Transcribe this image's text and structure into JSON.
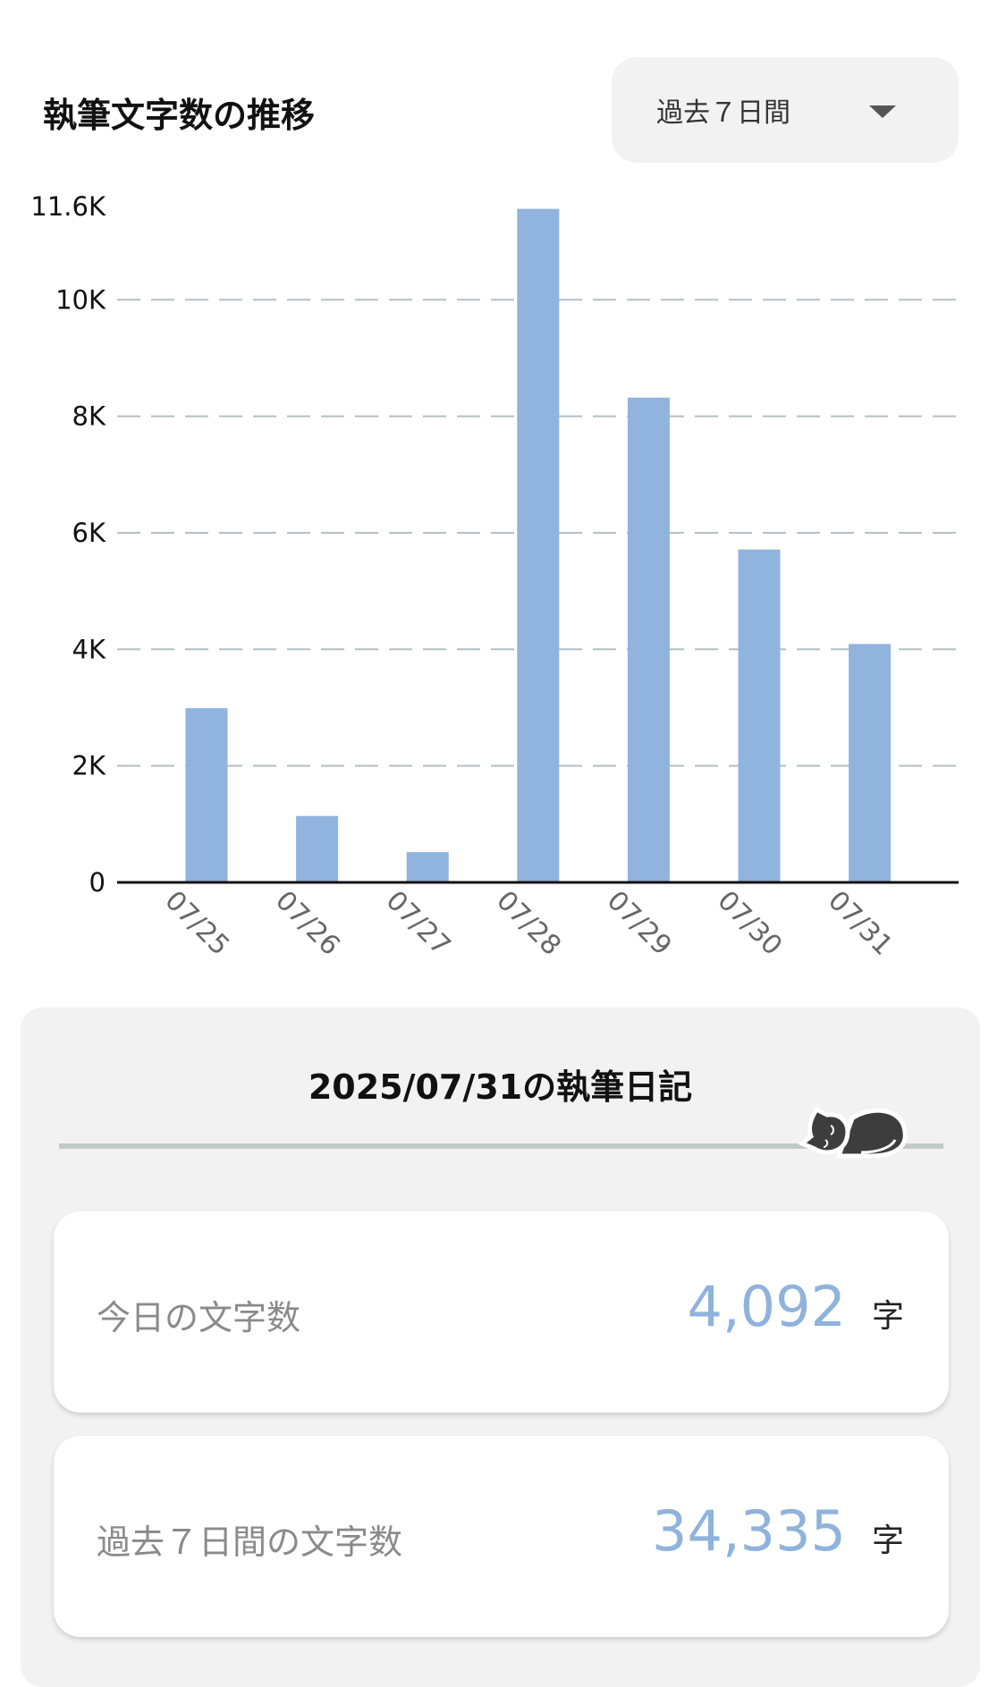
{
  "header": {
    "title": "執筆文字数の推移",
    "period_select": {
      "selected": "過去７日間",
      "icon": "caret-down-icon"
    }
  },
  "chart_data": {
    "type": "bar",
    "categories": [
      "07/25",
      "07/26",
      "07/27",
      "07/28",
      "07/29",
      "07/30",
      "07/31"
    ],
    "values": [
      2990,
      1140,
      520,
      11560,
      8320,
      5713,
      4092
    ],
    "yticks": [
      "0",
      "2K",
      "4K",
      "6K",
      "8K",
      "10K",
      "11.6K"
    ],
    "ytick_values": [
      0,
      2000,
      4000,
      6000,
      8000,
      10000,
      11600
    ],
    "ylim": [
      0,
      11600
    ],
    "grid": "dashed horizontal",
    "bar_color": "#91b4de"
  },
  "diary": {
    "title": "2025/07/31の執筆日記",
    "icon": "sleeping-cat-icon",
    "stats": [
      {
        "label": "今日の文字数",
        "value": "4,092",
        "unit": "字"
      },
      {
        "label": "過去７日間の文字数",
        "value": "34,335",
        "unit": "字"
      }
    ],
    "value_color": "#8fb3dc"
  }
}
